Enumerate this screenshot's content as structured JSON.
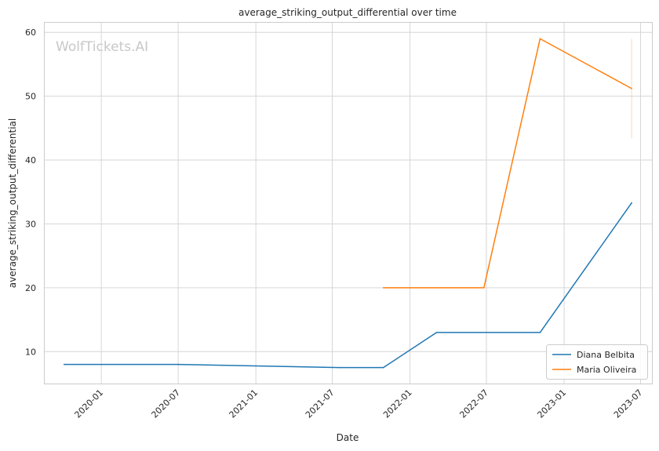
{
  "chart_data": {
    "type": "line",
    "title": "average_striking_output_differential over time",
    "xlabel": "Date",
    "ylabel": "average_striking_output_differential",
    "watermark": "WolfTickets.AI",
    "x_ticks": [
      "2020-01",
      "2020-07",
      "2021-01",
      "2021-07",
      "2022-01",
      "2022-07",
      "2023-01",
      "2023-07"
    ],
    "y_ticks": [
      10,
      20,
      30,
      40,
      50,
      60
    ],
    "xlim": [
      "2019-08-20",
      "2023-07-28"
    ],
    "ylim": [
      5,
      61.5
    ],
    "grid": true,
    "legend_position": "bottom-right",
    "colors": {
      "Diana Belbita": "#1f77b4",
      "Maria Oliveira": "#ff7f0e"
    },
    "series": [
      {
        "name": "Diana Belbita",
        "color": "#1f77b4",
        "points": [
          {
            "x": "2019-10-05",
            "y": 8.0
          },
          {
            "x": "2020-07-01",
            "y": 8.0
          },
          {
            "x": "2021-07-17",
            "y": 7.5
          },
          {
            "x": "2021-10-30",
            "y": 7.5
          },
          {
            "x": "2022-03-05",
            "y": 13.0
          },
          {
            "x": "2022-11-05",
            "y": 13.0
          },
          {
            "x": "2023-06-10",
            "y": 33.3
          }
        ]
      },
      {
        "name": "Maria Oliveira",
        "color": "#ff7f0e",
        "points": [
          {
            "x": "2021-10-30",
            "y": 20.0
          },
          {
            "x": "2022-06-25",
            "y": 20.0
          },
          {
            "x": "2022-11-05",
            "y": 59.0
          },
          {
            "x": "2023-06-10",
            "y": 51.2
          }
        ],
        "error_range": {
          "x": "2023-06-10",
          "low": 43.4,
          "high": 59.0
        }
      }
    ]
  }
}
